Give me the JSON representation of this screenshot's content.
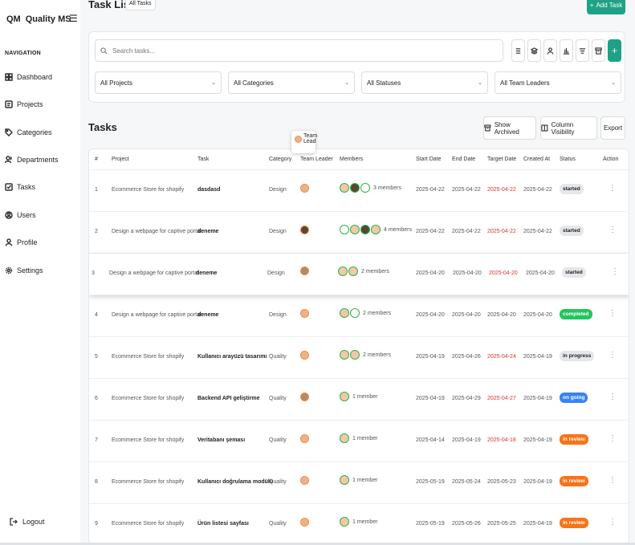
{
  "brand": {
    "logo": "QM",
    "name": "Quality MS",
    "menu_icon": "hamburger-icon"
  },
  "sidebar": {
    "heading": "NAVIGATION",
    "items": [
      {
        "label": "Dashboard",
        "icon": "dashboard-icon"
      },
      {
        "label": "Projects",
        "icon": "projects-icon"
      },
      {
        "label": "Categories",
        "icon": "tag-icon"
      },
      {
        "label": "Departments",
        "icon": "users-icon"
      },
      {
        "label": "Tasks",
        "icon": "checkbox-icon"
      },
      {
        "label": "Users",
        "icon": "user-circle-icon"
      },
      {
        "label": "Profile",
        "icon": "user-icon"
      },
      {
        "label": "Settings",
        "icon": "gear-icon"
      }
    ],
    "logout": "Logout"
  },
  "header": {
    "title": "Task List",
    "chip": "All Tasks",
    "add_button": "Add Task"
  },
  "filters": {
    "search_placeholder": "Search tasks...",
    "projects": "All Projects",
    "categories": "All Categories",
    "statuses": "All Statuses",
    "leaders": "All Team Leaders"
  },
  "tasks_section": {
    "title": "Tasks",
    "show_archived": "Show Archived",
    "column_visibility": "Column Visibility",
    "export": "Export"
  },
  "tooltip": {
    "line1": "Team",
    "line2": "Lead"
  },
  "table": {
    "columns": [
      "#",
      "Project",
      "Task",
      "Category",
      "Team Leader",
      "Members",
      "Start Date",
      "End Date",
      "Target Date",
      "Created At",
      "Status",
      "Action"
    ],
    "rows": [
      {
        "num": "1",
        "project": "Ecommerce Store for shopify",
        "task": "dasdasd",
        "category": "Design",
        "members": "3 members",
        "start": "2025-04-22",
        "end": "2025-04-22",
        "target": "2025-04-22",
        "created": "2025-04-22",
        "status": "started"
      },
      {
        "num": "2",
        "project": "Design a webpage for captive portal",
        "task": "deneme",
        "category": "Design",
        "members": "4 members",
        "start": "2025-04-22",
        "end": "2025-04-22",
        "target": "2025-04-22",
        "created": "2025-04-22",
        "status": "started"
      },
      {
        "num": "3",
        "project": "Design a webpage for captive portal",
        "task": "deneme",
        "category": "Design",
        "members": "2 members",
        "start": "2025-04-20",
        "end": "2025-04-20",
        "target": "2025-04-20",
        "created": "2025-04-20",
        "status": "started"
      },
      {
        "num": "4",
        "project": "Design a webpage for captive portal",
        "task": "deneme",
        "category": "Design",
        "members": "2 members",
        "start": "2025-04-20",
        "end": "2025-04-20",
        "target": "2025-04-20",
        "created": "2025-04-20",
        "status": "completed"
      },
      {
        "num": "5",
        "project": "Ecommerce Store for shopify",
        "task": "Kullanıcı arayüzü tasarımı",
        "category": "Quality",
        "members": "2 members",
        "start": "2025-04-19",
        "end": "2025-04-26",
        "target": "2025-04-24",
        "created": "2025-04-19",
        "status": "in progress"
      },
      {
        "num": "6",
        "project": "Ecommerce Store for shopify",
        "task": "Backend API geliştirme",
        "category": "Quality",
        "members": "1 member",
        "start": "2025-04-19",
        "end": "2025-04-29",
        "target": "2025-04-27",
        "created": "2025-04-19",
        "status": "on going"
      },
      {
        "num": "7",
        "project": "Ecommerce Store for shopify",
        "task": "Veritabanı şeması",
        "category": "Quality",
        "members": "1 member",
        "start": "2025-04-14",
        "end": "2025-04-19",
        "target": "2025-04-18",
        "created": "2025-04-19",
        "status": "in review"
      },
      {
        "num": "8",
        "project": "Ecommerce Store for shopify",
        "task": "Kullanıcı doğrulama modülü",
        "category": "Quality",
        "members": "1 member",
        "start": "2025-05-19",
        "end": "2025-05-24",
        "target": "2025-05-23",
        "created": "2025-04-19",
        "status": "in review"
      },
      {
        "num": "9",
        "project": "Ecommerce Store for shopify",
        "task": "Ürün listesi sayfası",
        "category": "Quality",
        "members": "1 member",
        "start": "2025-05-19",
        "end": "2025-05-26",
        "target": "2025-05-25",
        "created": "2025-04-19",
        "status": "in review"
      }
    ]
  },
  "colors": {
    "accent": "#1fa187",
    "overdue": "#e03131",
    "completed": "#22c55e",
    "ongoing": "#3b82f6",
    "review": "#f97316"
  }
}
